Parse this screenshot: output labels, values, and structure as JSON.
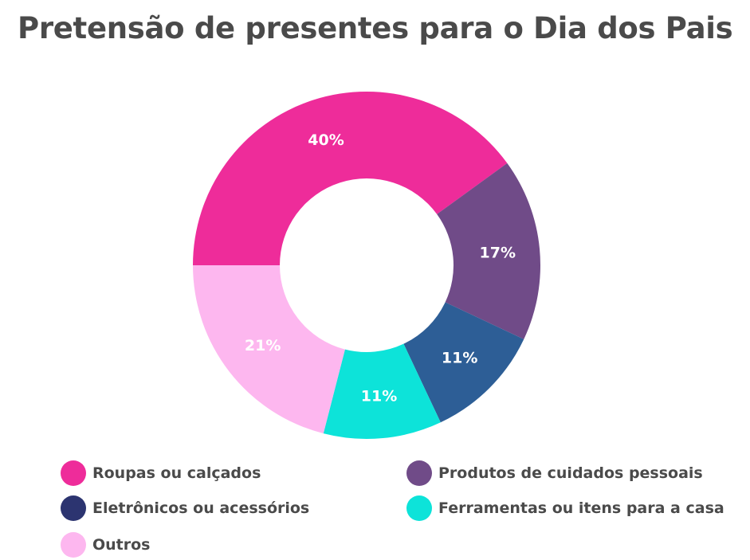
{
  "chart_data": {
    "type": "pie",
    "title": "Pretensão de presentes para o Dia dos Pais",
    "slices": [
      {
        "name": "Roupas ou calçados",
        "value": 40,
        "label": "40%",
        "color": "#ee2c9a"
      },
      {
        "name": "Produtos de cuidados pessoais",
        "value": 17,
        "label": "17%",
        "color": "#704b88"
      },
      {
        "name": "Eletrônicos ou acessórios",
        "value": 11,
        "label": "11%",
        "color": "#2d5e96"
      },
      {
        "name": "Ferramentas ou itens para a casa",
        "value": 11,
        "label": "11%",
        "color": "#0de3d9"
      },
      {
        "name": "Outros",
        "value": 21,
        "label": "21%",
        "color": "#fdb7ef"
      }
    ],
    "legend": {
      "position": "bottom",
      "items": [
        {
          "name": "Roupas ou calçados",
          "color": "#ee2c9a"
        },
        {
          "name": "Produtos de cuidados pessoais",
          "color": "#704b88"
        },
        {
          "name": "Eletrônicos ou acessórios",
          "color": "#2c3470"
        },
        {
          "name": "Ferramentas ou itens para a casa",
          "color": "#0de3d9"
        },
        {
          "name": "Outros",
          "color": "#fdb7ef"
        }
      ]
    }
  }
}
